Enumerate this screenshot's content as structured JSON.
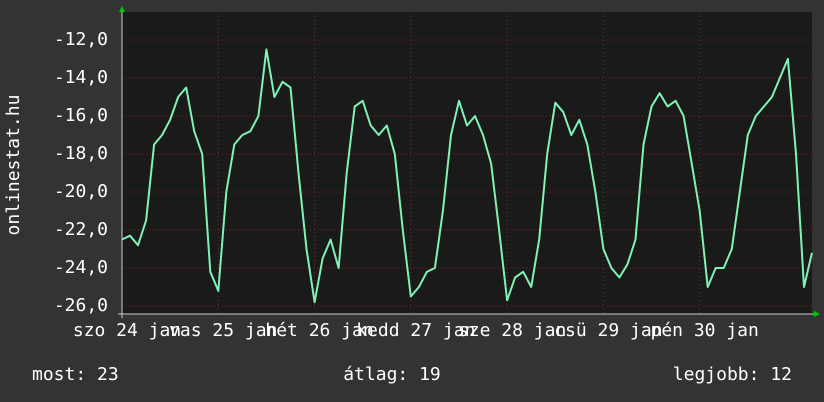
{
  "chart_data": {
    "type": "line",
    "ylabel": "onlinestat.hu",
    "ylim": [
      -26.42,
      -10.53
    ],
    "yticks": [
      {
        "value": -12,
        "label": "-12,0"
      },
      {
        "value": -14,
        "label": "-14,0"
      },
      {
        "value": -16,
        "label": "-16,0"
      },
      {
        "value": -18,
        "label": "-18,0"
      },
      {
        "value": -20,
        "label": "-20,0"
      },
      {
        "value": -22,
        "label": "-22,0"
      },
      {
        "value": -24,
        "label": "-24,0"
      },
      {
        "value": -26,
        "label": "-26,0"
      }
    ],
    "xlim": [
      0,
      86
    ],
    "xticks": [
      {
        "value": 0,
        "label": "szo 24 jan"
      },
      {
        "value": 12,
        "label": "vas 25 jan"
      },
      {
        "value": 24,
        "label": "hét 26 jan"
      },
      {
        "value": 36,
        "label": "kedd 27 jan"
      },
      {
        "value": 48,
        "label": "sze 28 jan"
      },
      {
        "value": 60,
        "label": "csü 29 jan"
      },
      {
        "value": 72,
        "label": "pén 30 jan"
      }
    ],
    "grid": true,
    "series": [
      {
        "color": "#7ff2b4",
        "values": [
          -22.5,
          -22.3,
          -22.8,
          -21.5,
          -17.5,
          -17,
          -16.2,
          -15,
          -14.5,
          -16.8,
          -18,
          -24.2,
          -25.2,
          -20,
          -17.5,
          -17,
          -16.8,
          -16,
          -12.5,
          -15,
          -14.2,
          -14.5,
          -19,
          -23,
          -25.8,
          -23.5,
          -22.5,
          -24,
          -19,
          -15.5,
          -15.2,
          -16.5,
          -17,
          -16.5,
          -18,
          -22,
          -25.5,
          -25,
          -24.2,
          -24,
          -21,
          -17,
          -15.2,
          -16.5,
          -16,
          -17,
          -18.5,
          -22,
          -25.7,
          -24.5,
          -24.2,
          -25,
          -22.5,
          -18,
          -15.3,
          -15.8,
          -17,
          -16.2,
          -17.5,
          -20,
          -23,
          -24,
          -24.5,
          -23.8,
          -22.5,
          -17.5,
          -15.5,
          -14.8,
          -15.5,
          -15.2,
          -16,
          -18.5,
          -21,
          -25,
          -24,
          -24,
          -23,
          -20,
          -17,
          -16,
          -15.5,
          -15,
          -14,
          -13,
          -18,
          -25,
          -23.2
        ]
      }
    ],
    "stats": [
      "most: 23",
      "átlag: 19",
      "legjobb: 12"
    ]
  }
}
